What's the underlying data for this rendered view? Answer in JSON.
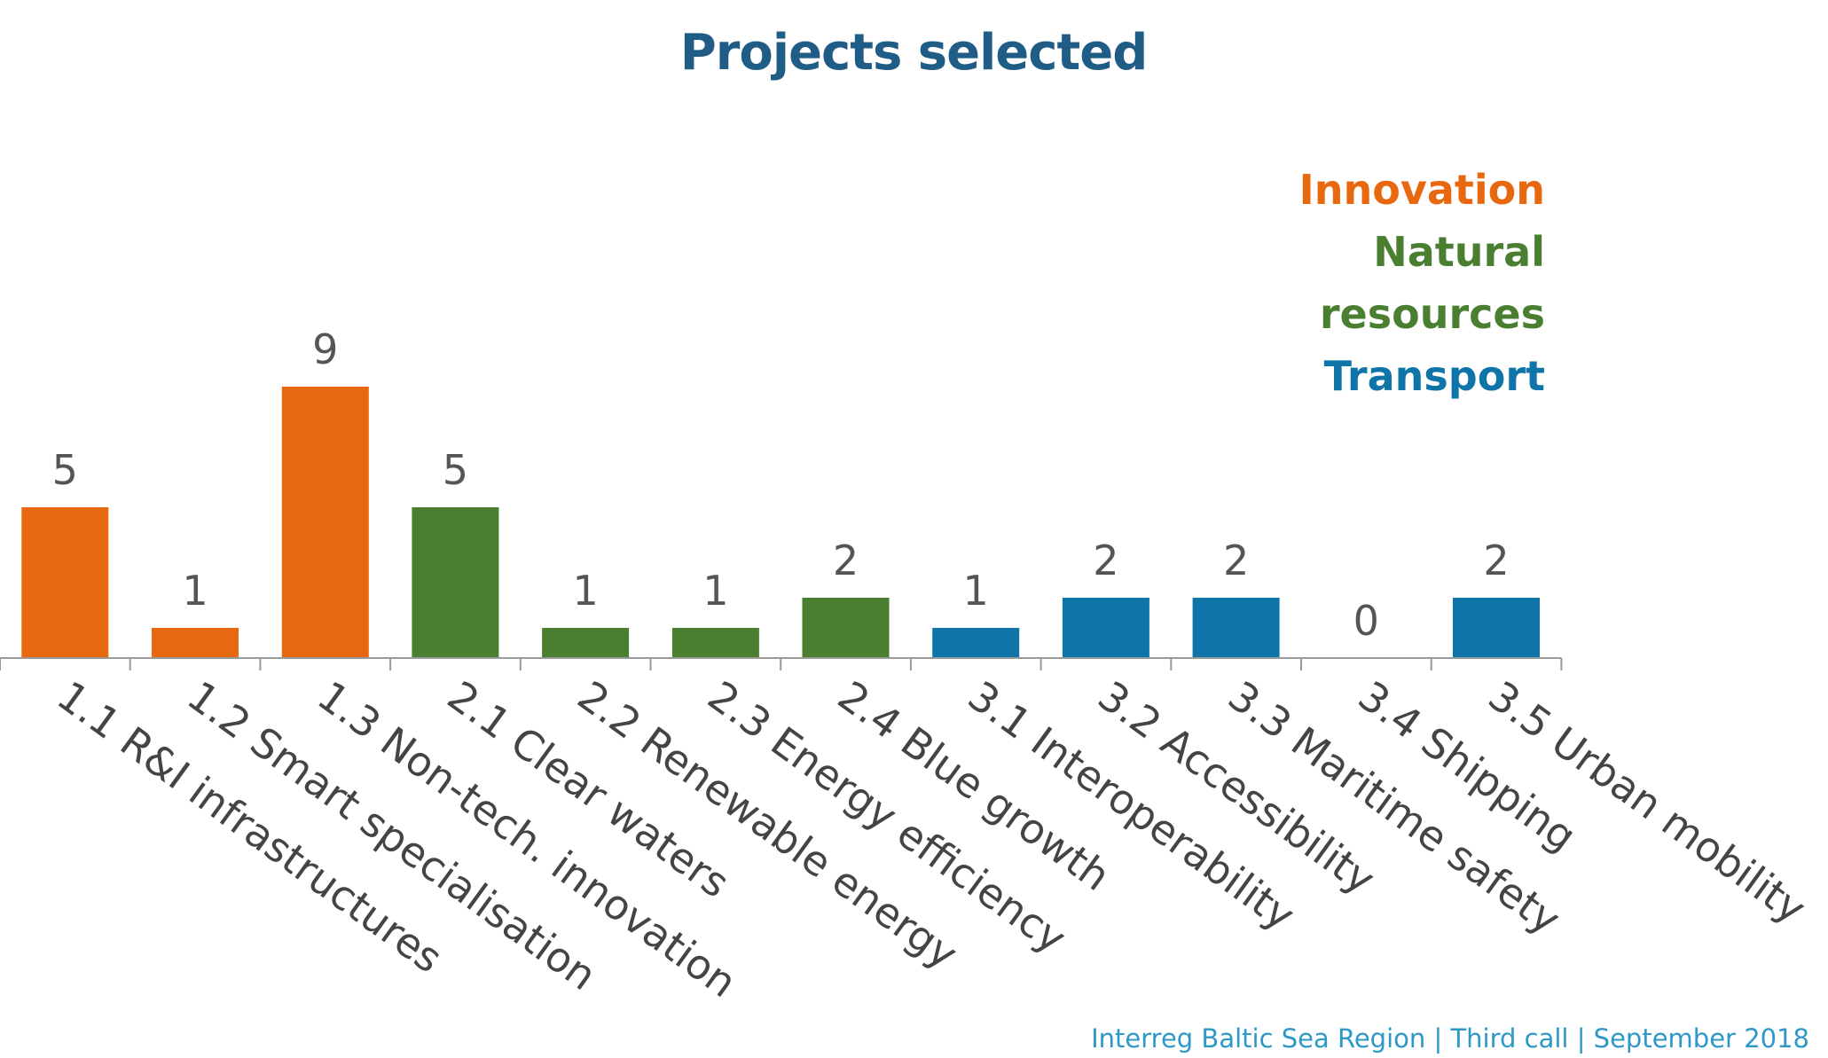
{
  "chart_data": {
    "type": "bar",
    "title": "Projects selected",
    "xlabel": "",
    "ylabel": "",
    "ylim": [
      0,
      9
    ],
    "grid": false,
    "legend_position": "top-right",
    "categories": [
      "1.1 R&I infrastructures",
      "1.2 Smart specialisation",
      "1.3 Non-tech. innovation",
      "2.1 Clear waters",
      "2.2 Renewable energy",
      "2.3 Energy efficiency",
      "2.4 Blue growth",
      "3.1 Interoperability",
      "3.2 Accessibility",
      "3.3 Maritime safety",
      "3.4 Shipping",
      "3.5 Urban mobility"
    ],
    "values": [
      5,
      1,
      9,
      5,
      1,
      1,
      2,
      1,
      2,
      2,
      0,
      2
    ],
    "groups": [
      "innovation",
      "innovation",
      "innovation",
      "natural",
      "natural",
      "natural",
      "natural",
      "transport",
      "transport",
      "transport",
      "transport",
      "transport"
    ],
    "legend": [
      {
        "key": "innovation",
        "lines": [
          "Innovation"
        ],
        "color": "#E8680F"
      },
      {
        "key": "natural",
        "lines": [
          "Natural",
          "resources"
        ],
        "color": "#4A7F31"
      },
      {
        "key": "transport",
        "lines": [
          "Transport"
        ],
        "color": "#0F74A8"
      }
    ]
  },
  "footer": "Interreg Baltic Sea Region | Third call | September 2018",
  "colors": {
    "title": "#1F5C86",
    "footer": "#2E98C9",
    "value_label": "#555555",
    "tick_label": "#444444",
    "axis": "#9A9A9A"
  }
}
